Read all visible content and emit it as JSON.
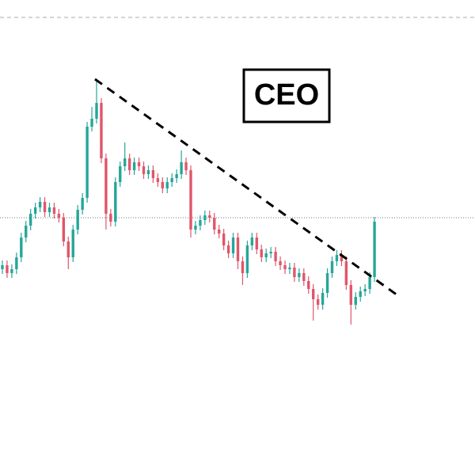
{
  "chart_data": {
    "type": "candlestick",
    "title": "CEO",
    "up_color": "#26a69a",
    "down_color": "#e0566a",
    "ylim": [
      0,
      600
    ],
    "series": [
      {
        "name": "open",
        "values": [
          260,
          265,
          255,
          260,
          275,
          300,
          315,
          330,
          338,
          345,
          332,
          338,
          330,
          325,
          295,
          275,
          310,
          335,
          350,
          440,
          450,
          470,
          400,
          330,
          320,
          370,
          390,
          400,
          385,
          395,
          390,
          380,
          385,
          375,
          370,
          362,
          370,
          375,
          380,
          395,
          385,
          310,
          315,
          322,
          328,
          325,
          310,
          305,
          290,
          280,
          300,
          270,
          255,
          290,
          300,
          285,
          275,
          280,
          282,
          270,
          265,
          260,
          262,
          250,
          255,
          245,
          235,
          222,
          215,
          230,
          255,
          270,
          278,
          270,
          240,
          215,
          225,
          232,
          235,
          250
        ]
      },
      {
        "name": "high",
        "values": [
          271,
          271,
          266,
          281,
          306,
          321,
          336,
          344,
          351,
          351,
          344,
          344,
          336,
          331,
          301,
          316,
          341,
          356,
          446,
          465,
          500,
          476,
          406,
          336,
          376,
          396,
          420,
          406,
          401,
          401,
          396,
          391,
          391,
          381,
          376,
          376,
          381,
          386,
          410,
          401,
          391,
          321,
          328,
          334,
          334,
          331,
          316,
          311,
          296,
          306,
          306,
          276,
          296,
          306,
          306,
          291,
          286,
          288,
          288,
          276,
          271,
          268,
          268,
          261,
          261,
          251,
          241,
          228,
          236,
          261,
          276,
          284,
          284,
          276,
          246,
          231,
          238,
          241,
          256,
          326
        ]
      },
      {
        "name": "low",
        "values": [
          254,
          249,
          249,
          254,
          269,
          294,
          309,
          324,
          332,
          326,
          326,
          324,
          319,
          289,
          260,
          269,
          304,
          329,
          344,
          434,
          444,
          394,
          310,
          314,
          314,
          364,
          384,
          379,
          379,
          384,
          374,
          374,
          369,
          364,
          356,
          356,
          364,
          369,
          374,
          379,
          300,
          304,
          309,
          316,
          319,
          304,
          299,
          284,
          274,
          274,
          260,
          240,
          249,
          284,
          279,
          269,
          269,
          274,
          264,
          259,
          254,
          254,
          244,
          244,
          239,
          229,
          195,
          209,
          209,
          224,
          249,
          264,
          264,
          234,
          190,
          209,
          219,
          226,
          229,
          244
        ]
      },
      {
        "name": "close",
        "values": [
          265,
          255,
          260,
          275,
          300,
          315,
          330,
          338,
          345,
          332,
          338,
          330,
          325,
          295,
          275,
          310,
          335,
          350,
          440,
          450,
          470,
          400,
          330,
          320,
          370,
          390,
          400,
          385,
          395,
          390,
          380,
          385,
          375,
          370,
          362,
          370,
          375,
          380,
          395,
          385,
          310,
          315,
          322,
          328,
          325,
          310,
          305,
          290,
          280,
          300,
          270,
          255,
          290,
          300,
          285,
          275,
          280,
          282,
          270,
          265,
          260,
          262,
          250,
          255,
          245,
          235,
          222,
          215,
          230,
          255,
          270,
          278,
          270,
          240,
          215,
          225,
          232,
          235,
          250,
          320
        ]
      }
    ]
  }
}
